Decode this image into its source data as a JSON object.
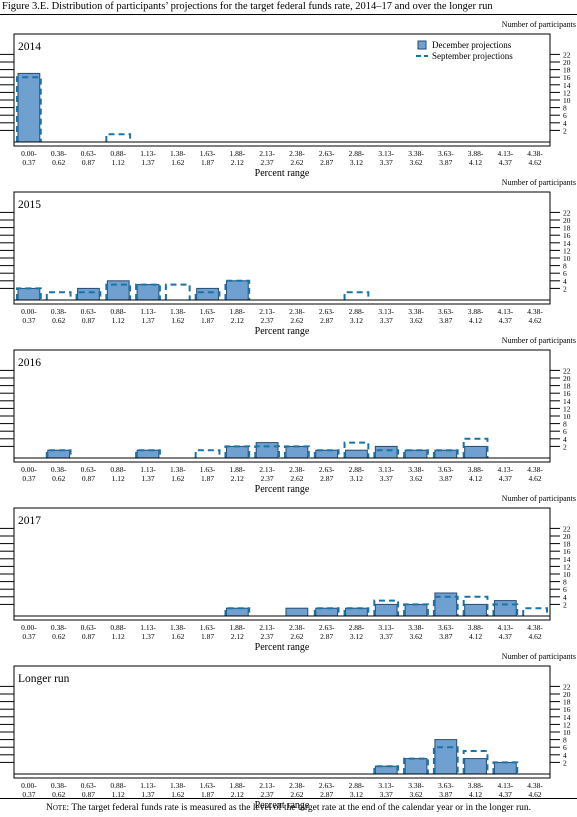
{
  "figure": {
    "title": "Figure 3.E. Distribution of participants’ projections for the target federal funds rate, 2014–17 and over the longer run",
    "note_label": "Note:",
    "note_text": "The target federal funds rate is measured as the level of the target rate at the end of the calendar year or in the longer run."
  },
  "colors": {
    "bar_fill": "#6fa0cf",
    "bar_stroke": "#2a4a70",
    "september_dash": "#1a73a8"
  },
  "chart_data": [
    {
      "type": "bar",
      "panel_label": "2014",
      "ylabel": "Number of participants",
      "xlabel": "Percent range",
      "ylim": [
        0,
        22
      ],
      "yticks": [
        2,
        4,
        6,
        8,
        10,
        12,
        14,
        16,
        18,
        20,
        22
      ],
      "categories": [
        "0.00-\n0.37",
        "0.38-\n0.62",
        "0.63-\n0.87",
        "0.88-\n1.12",
        "1.13-\n1.37",
        "1.38-\n1.62",
        "1.63-\n1.87",
        "1.88-\n2.12",
        "2.13-\n2.37",
        "2.38-\n2.62",
        "2.63-\n2.87",
        "2.88-\n3.12",
        "3.13-\n3.37",
        "3.38-\n3.62",
        "3.63-\n3.87",
        "3.88-\n4.12",
        "4.13-\n4.37",
        "4.38-\n4.62"
      ],
      "legend": {
        "position": "top-right",
        "entries": [
          "December projections",
          "September projections"
        ]
      },
      "series": [
        {
          "name": "December projections",
          "values": [
            17,
            0,
            0,
            0,
            0,
            0,
            0,
            0,
            0,
            0,
            0,
            0,
            0,
            0,
            0,
            0,
            0,
            0
          ]
        },
        {
          "name": "September projections",
          "values": [
            16,
            0,
            0,
            1,
            0,
            0,
            0,
            0,
            0,
            0,
            0,
            0,
            0,
            0,
            0,
            0,
            0,
            0
          ]
        }
      ]
    },
    {
      "type": "bar",
      "panel_label": "2015",
      "ylabel": "Number of participants",
      "xlabel": "Percent range",
      "ylim": [
        0,
        22
      ],
      "yticks": [
        2,
        4,
        6,
        8,
        10,
        12,
        14,
        16,
        18,
        20,
        22
      ],
      "categories": [
        "0.00-\n0.37",
        "0.38-\n0.62",
        "0.63-\n0.87",
        "0.88-\n1.12",
        "1.13-\n1.37",
        "1.38-\n1.62",
        "1.63-\n1.87",
        "1.88-\n2.12",
        "2.13-\n2.37",
        "2.38-\n2.62",
        "2.63-\n2.87",
        "2.88-\n3.12",
        "3.13-\n3.37",
        "3.38-\n3.62",
        "3.63-\n3.87",
        "3.88-\n4.12",
        "4.13-\n4.37",
        "4.38-\n4.62"
      ],
      "series": [
        {
          "name": "December projections",
          "values": [
            2,
            0,
            2,
            4,
            3,
            0,
            2,
            4,
            0,
            0,
            0,
            0,
            0,
            0,
            0,
            0,
            0,
            0
          ]
        },
        {
          "name": "September projections",
          "values": [
            2,
            1,
            1,
            3,
            3,
            3,
            1,
            4,
            0,
            0,
            0,
            1,
            0,
            0,
            0,
            0,
            0,
            0
          ]
        }
      ]
    },
    {
      "type": "bar",
      "panel_label": "2016",
      "ylabel": "Number of participants",
      "xlabel": "Percent range",
      "ylim": [
        0,
        22
      ],
      "yticks": [
        2,
        4,
        6,
        8,
        10,
        12,
        14,
        16,
        18,
        20,
        22
      ],
      "categories": [
        "0.00-\n0.37",
        "0.38-\n0.62",
        "0.63-\n0.87",
        "0.88-\n1.12",
        "1.13-\n1.37",
        "1.38-\n1.62",
        "1.63-\n1.87",
        "1.88-\n2.12",
        "2.13-\n2.37",
        "2.38-\n2.62",
        "2.63-\n2.87",
        "2.88-\n3.12",
        "3.13-\n3.37",
        "3.38-\n3.62",
        "3.63-\n3.87",
        "3.88-\n4.12",
        "4.13-\n4.37",
        "4.38-\n4.62"
      ],
      "series": [
        {
          "name": "December projections",
          "values": [
            0,
            1,
            0,
            0,
            1,
            0,
            0,
            2,
            3,
            2,
            1,
            1,
            2,
            1,
            1,
            2,
            0,
            0
          ]
        },
        {
          "name": "September projections",
          "values": [
            0,
            1,
            0,
            0,
            1,
            0,
            1,
            2,
            2,
            2,
            1,
            3,
            1,
            1,
            1,
            4,
            0,
            0
          ]
        }
      ]
    },
    {
      "type": "bar",
      "panel_label": "2017",
      "ylabel": "Number of participants",
      "xlabel": "Percent range",
      "ylim": [
        0,
        22
      ],
      "yticks": [
        2,
        4,
        6,
        8,
        10,
        12,
        14,
        16,
        18,
        20,
        22
      ],
      "categories": [
        "0.00-\n0.37",
        "0.38-\n0.62",
        "0.63-\n0.87",
        "0.88-\n1.12",
        "1.13-\n1.37",
        "1.38-\n1.62",
        "1.63-\n1.87",
        "1.88-\n2.12",
        "2.13-\n2.37",
        "2.38-\n2.62",
        "2.63-\n2.87",
        "2.88-\n3.12",
        "3.13-\n3.37",
        "3.38-\n3.62",
        "3.63-\n3.87",
        "3.88-\n4.12",
        "4.13-\n4.37",
        "4.38-\n4.62"
      ],
      "series": [
        {
          "name": "December projections",
          "values": [
            0,
            0,
            0,
            0,
            0,
            0,
            0,
            1,
            0,
            1,
            1,
            1,
            2,
            2,
            5,
            2,
            3,
            0
          ]
        },
        {
          "name": "September projections",
          "values": [
            0,
            0,
            0,
            0,
            0,
            0,
            0,
            1,
            0,
            0,
            1,
            1,
            3,
            2,
            4,
            4,
            2,
            1
          ]
        }
      ]
    },
    {
      "type": "bar",
      "panel_label": "Longer run",
      "ylabel": "Number of participants",
      "xlabel": "Percent range",
      "ylim": [
        0,
        22
      ],
      "yticks": [
        2,
        4,
        6,
        8,
        10,
        12,
        14,
        16,
        18,
        20,
        22
      ],
      "categories": [
        "0.00-\n0.37",
        "0.38-\n0.62",
        "0.63-\n0.87",
        "0.88-\n1.12",
        "1.13-\n1.37",
        "1.38-\n1.62",
        "1.63-\n1.87",
        "1.88-\n2.12",
        "2.13-\n2.37",
        "2.38-\n2.62",
        "2.63-\n2.87",
        "2.88-\n3.12",
        "3.13-\n3.37",
        "3.38-\n3.62",
        "3.63-\n3.87",
        "3.88-\n4.12",
        "4.13-\n4.37",
        "4.38-\n4.62"
      ],
      "series": [
        {
          "name": "December projections",
          "values": [
            0,
            0,
            0,
            0,
            0,
            0,
            0,
            0,
            0,
            0,
            0,
            0,
            1,
            3,
            8,
            3,
            2,
            0
          ]
        },
        {
          "name": "September projections",
          "values": [
            0,
            0,
            0,
            0,
            0,
            0,
            0,
            0,
            0,
            0,
            0,
            0,
            1,
            3,
            6,
            5,
            2,
            0
          ]
        }
      ]
    }
  ]
}
